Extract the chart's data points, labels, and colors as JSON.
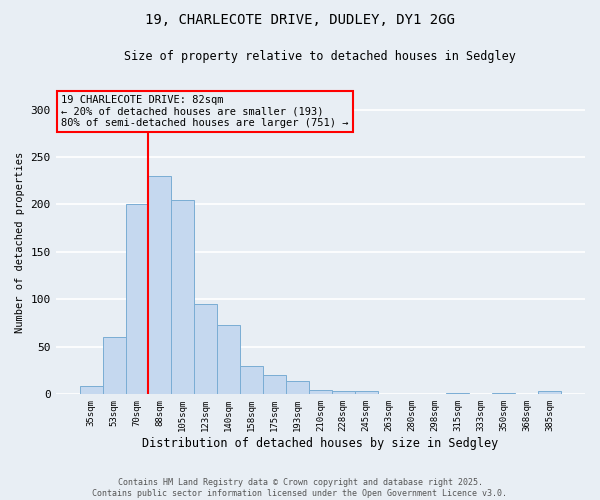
{
  "title1": "19, CHARLECOTE DRIVE, DUDLEY, DY1 2GG",
  "title2": "Size of property relative to detached houses in Sedgley",
  "xlabel": "Distribution of detached houses by size in Sedgley",
  "ylabel": "Number of detached properties",
  "categories": [
    "35sqm",
    "53sqm",
    "70sqm",
    "88sqm",
    "105sqm",
    "123sqm",
    "140sqm",
    "158sqm",
    "175sqm",
    "193sqm",
    "210sqm",
    "228sqm",
    "245sqm",
    "263sqm",
    "280sqm",
    "298sqm",
    "315sqm",
    "333sqm",
    "350sqm",
    "368sqm",
    "385sqm"
  ],
  "values": [
    9,
    60,
    200,
    230,
    205,
    95,
    73,
    30,
    20,
    14,
    5,
    3,
    4,
    0,
    0,
    0,
    1,
    0,
    1,
    0,
    3
  ],
  "bar_color": "#c5d8ef",
  "bar_edge_color": "#7aadd4",
  "annotation_title": "19 CHARLECOTE DRIVE: 82sqm",
  "annotation_line1": "← 20% of detached houses are smaller (193)",
  "annotation_line2": "80% of semi-detached houses are larger (751) →",
  "footer1": "Contains HM Land Registry data © Crown copyright and database right 2025.",
  "footer2": "Contains public sector information licensed under the Open Government Licence v3.0.",
  "ylim": [
    0,
    320
  ],
  "yticks": [
    0,
    50,
    100,
    150,
    200,
    250,
    300
  ],
  "background_color": "#e8eef4",
  "grid_color": "#ffffff"
}
